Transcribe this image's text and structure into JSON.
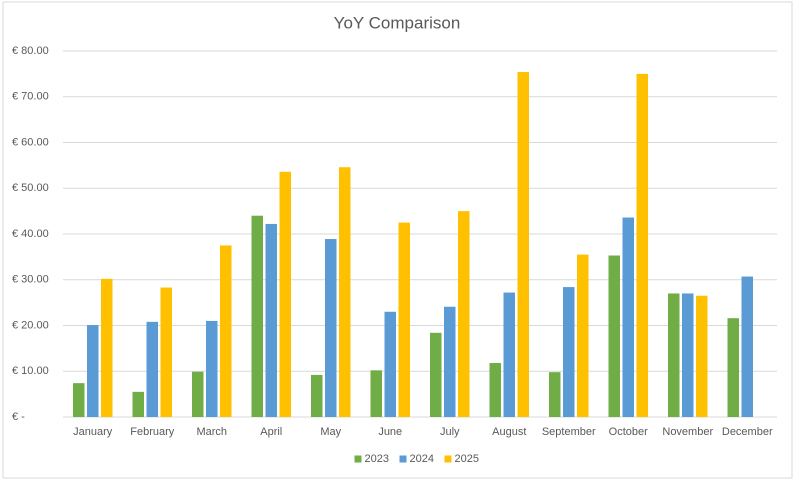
{
  "chart_data": {
    "type": "bar",
    "title": "YoY Comparison",
    "categories": [
      "January",
      "February",
      "March",
      "April",
      "May",
      "June",
      "July",
      "August",
      "September",
      "October",
      "November",
      "December"
    ],
    "series": [
      {
        "name": "2023",
        "color": "#70ad47",
        "values": [
          7.4,
          5.5,
          9.9,
          44.0,
          9.2,
          10.2,
          18.4,
          11.8,
          9.8,
          35.3,
          27.0,
          21.6
        ]
      },
      {
        "name": "2024",
        "color": "#5b9bd5",
        "values": [
          20.1,
          20.8,
          21.0,
          42.2,
          38.9,
          23.0,
          24.1,
          27.2,
          28.4,
          43.6,
          27.0,
          30.7
        ]
      },
      {
        "name": "2025",
        "color": "#ffc000",
        "values": [
          30.2,
          28.3,
          37.5,
          53.6,
          54.6,
          42.5,
          45.0,
          75.4,
          35.5,
          75.0,
          26.5,
          null
        ]
      }
    ],
    "ylim": [
      0,
      80
    ],
    "yticks": [
      {
        "value": 0,
        "label": "€ -"
      },
      {
        "value": 10,
        "label": "€ 10.00"
      },
      {
        "value": 20,
        "label": "€ 20.00"
      },
      {
        "value": 30,
        "label": "€ 30.00"
      },
      {
        "value": 40,
        "label": "€ 40.00"
      },
      {
        "value": 50,
        "label": "€ 50.00"
      },
      {
        "value": 60,
        "label": "€ 60.00"
      },
      {
        "value": 70,
        "label": "€ 70.00"
      },
      {
        "value": 80,
        "label": "€ 80.00"
      }
    ],
    "grid": true,
    "legend": "bottom"
  }
}
